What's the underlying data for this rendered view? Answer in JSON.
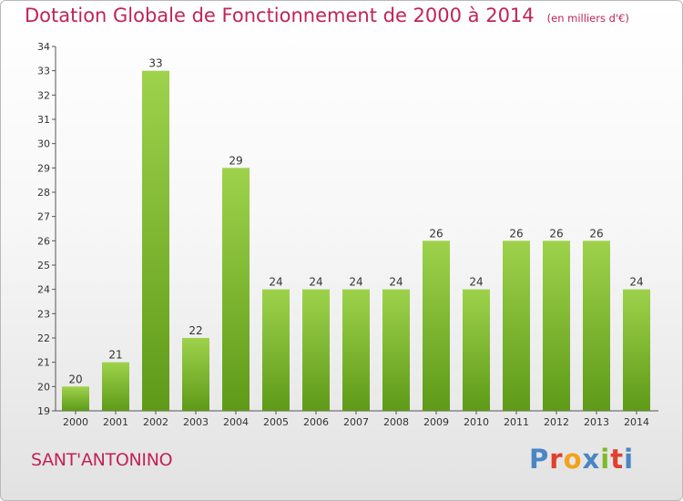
{
  "header": {
    "title": "Dotation Globale de Fonctionnement de 2000 à 2014",
    "unit": "(en milliers d'€)"
  },
  "footer": {
    "commune": "SANT'ANTONINO",
    "logo_letters": [
      "P",
      "r",
      "o",
      "x",
      "i",
      "t",
      "i"
    ],
    "logo_colors": [
      "#4a86c5",
      "#e0402c",
      "#f3a21b",
      "#4a86c5",
      "#7dbb2b",
      "#e0402c",
      "#4a86c5"
    ]
  },
  "colors": {
    "title": "#c0235a",
    "bar_light": "#9ed24c",
    "bar_dark": "#5e9a18",
    "axis": "#555555"
  },
  "chart_data": {
    "type": "bar",
    "categories": [
      "2000",
      "2001",
      "2002",
      "2003",
      "2004",
      "2005",
      "2006",
      "2007",
      "2008",
      "2009",
      "2010",
      "2011",
      "2012",
      "2013",
      "2014"
    ],
    "values": [
      20,
      21,
      33,
      22,
      29,
      24,
      24,
      24,
      24,
      26,
      24,
      26,
      26,
      26,
      24
    ],
    "title": "Dotation Globale de Fonctionnement de 2000 à 2014",
    "xlabel": "",
    "ylabel": "",
    "ylim": [
      19,
      34
    ],
    "yticks": [
      19,
      20,
      21,
      22,
      23,
      24,
      25,
      26,
      27,
      28,
      29,
      30,
      31,
      32,
      33,
      34
    ],
    "grid": false,
    "data_labels": true
  }
}
